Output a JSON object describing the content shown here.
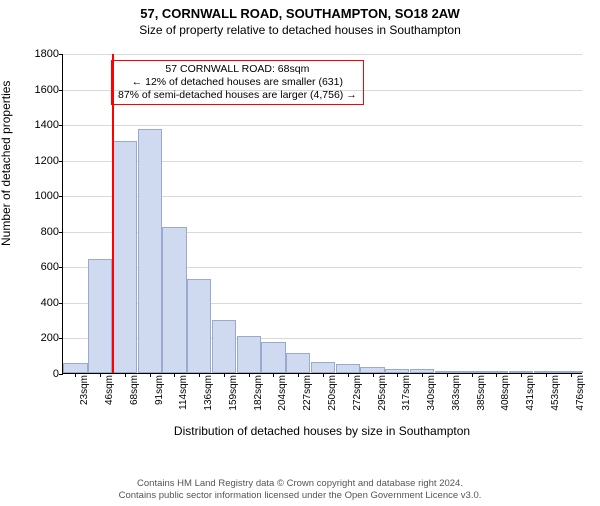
{
  "title": "57, CORNWALL ROAD, SOUTHAMPTON, SO18 2AW",
  "subtitle": "Size of property relative to detached houses in Southampton",
  "ylabel": "Number of detached properties",
  "xlabel": "Distribution of detached houses by size in Southampton",
  "chart": {
    "type": "histogram",
    "background_color": "#ffffff",
    "grid_color": "#d9d9d9",
    "axis_color": "#000000",
    "bar_fill": "#cfd9ef",
    "bar_stroke": "#9aa9cf",
    "bar_stroke_width": 1,
    "marker_color": "#ff0000",
    "marker_x": "68sqm",
    "ylim": [
      0,
      1800
    ],
    "ytick_step": 200,
    "yticks": [
      0,
      200,
      400,
      600,
      800,
      1000,
      1200,
      1400,
      1600,
      1800
    ],
    "categories": [
      "23sqm",
      "46sqm",
      "68sqm",
      "91sqm",
      "114sqm",
      "136sqm",
      "159sqm",
      "182sqm",
      "204sqm",
      "227sqm",
      "250sqm",
      "272sqm",
      "295sqm",
      "317sqm",
      "340sqm",
      "363sqm",
      "385sqm",
      "408sqm",
      "431sqm",
      "453sqm",
      "476sqm"
    ],
    "values": [
      55,
      640,
      1305,
      1375,
      820,
      530,
      300,
      210,
      175,
      110,
      60,
      50,
      35,
      22,
      22,
      10,
      10,
      0,
      0,
      0,
      0
    ],
    "annot": {
      "line1": "57 CORNWALL ROAD: 68sqm",
      "line2": "← 12% of detached houses are smaller (631)",
      "line3": "87% of semi-detached houses are larger (4,756) →",
      "border_color": "#ff0000"
    }
  },
  "footer": {
    "line1": "Contains HM Land Registry data © Crown copyright and database right 2024.",
    "line2": "Contains public sector information licensed under the Open Government Licence v3.0.",
    "color": "#555555"
  },
  "fonts": {
    "title_size_pt": 13,
    "subtitle_size_pt": 12,
    "label_size_pt": 12,
    "tick_size_pt": 11,
    "annot_size_pt": 10.5,
    "footer_size_pt": 9.5
  }
}
